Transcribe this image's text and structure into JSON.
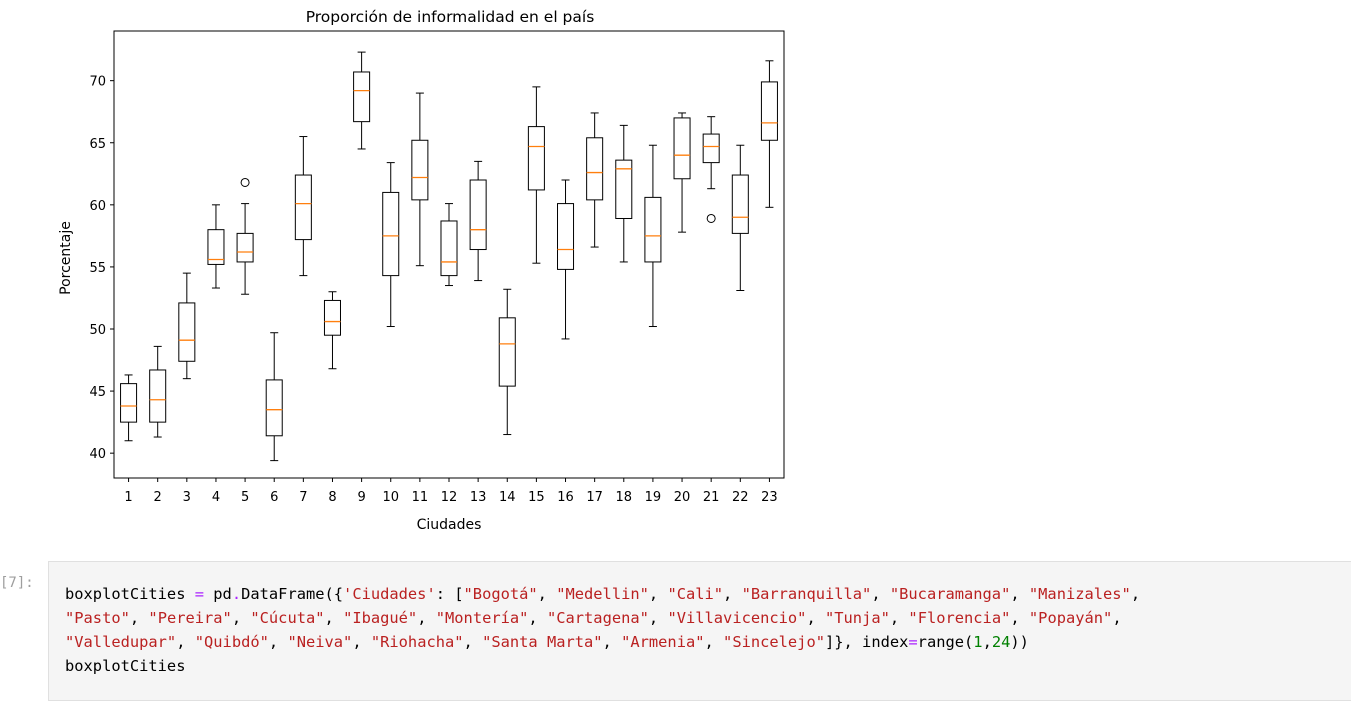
{
  "chart_data": {
    "type": "boxplot",
    "title": "Proporción de informalidad en el país",
    "xlabel": "Ciudades",
    "ylabel": "Porcentaje",
    "ylim": [
      38,
      74
    ],
    "yticks": [
      40,
      45,
      50,
      55,
      60,
      65,
      70
    ],
    "categories": [
      "1",
      "2",
      "3",
      "4",
      "5",
      "6",
      "7",
      "8",
      "9",
      "10",
      "11",
      "12",
      "13",
      "14",
      "15",
      "16",
      "17",
      "18",
      "19",
      "20",
      "21",
      "22",
      "23"
    ],
    "grid": false,
    "colors": {
      "box": "#000000",
      "median": "#ff7f0e"
    },
    "boxes": [
      {
        "category": "1",
        "whislo": 41.0,
        "q1": 42.5,
        "median": 43.8,
        "q3": 45.6,
        "whishi": 46.3,
        "fliers": []
      },
      {
        "category": "2",
        "whislo": 41.3,
        "q1": 42.5,
        "median": 44.3,
        "q3": 46.7,
        "whishi": 48.6,
        "fliers": []
      },
      {
        "category": "3",
        "whislo": 46.0,
        "q1": 47.4,
        "median": 49.1,
        "q3": 52.1,
        "whishi": 54.5,
        "fliers": []
      },
      {
        "category": "4",
        "whislo": 53.3,
        "q1": 55.2,
        "median": 55.6,
        "q3": 58.0,
        "whishi": 60.0,
        "fliers": []
      },
      {
        "category": "5",
        "whislo": 52.8,
        "q1": 55.4,
        "median": 56.2,
        "q3": 57.7,
        "whishi": 60.1,
        "fliers": [
          61.8
        ]
      },
      {
        "category": "6",
        "whislo": 39.4,
        "q1": 41.4,
        "median": 43.5,
        "q3": 45.9,
        "whishi": 49.7,
        "fliers": []
      },
      {
        "category": "7",
        "whislo": 54.3,
        "q1": 57.2,
        "median": 60.1,
        "q3": 62.4,
        "whishi": 65.5,
        "fliers": []
      },
      {
        "category": "8",
        "whislo": 46.8,
        "q1": 49.5,
        "median": 50.6,
        "q3": 52.3,
        "whishi": 53.0,
        "fliers": []
      },
      {
        "category": "9",
        "whislo": 64.5,
        "q1": 66.7,
        "median": 69.2,
        "q3": 70.7,
        "whishi": 72.3,
        "fliers": []
      },
      {
        "category": "10",
        "whislo": 50.2,
        "q1": 54.3,
        "median": 57.5,
        "q3": 61.0,
        "whishi": 63.4,
        "fliers": []
      },
      {
        "category": "11",
        "whislo": 55.1,
        "q1": 60.4,
        "median": 62.2,
        "q3": 65.2,
        "whishi": 69.0,
        "fliers": []
      },
      {
        "category": "12",
        "whislo": 53.5,
        "q1": 54.3,
        "median": 55.4,
        "q3": 58.7,
        "whishi": 60.1,
        "fliers": []
      },
      {
        "category": "13",
        "whislo": 53.9,
        "q1": 56.4,
        "median": 58.0,
        "q3": 62.0,
        "whishi": 63.5,
        "fliers": []
      },
      {
        "category": "14",
        "whislo": 41.5,
        "q1": 45.4,
        "median": 48.8,
        "q3": 50.9,
        "whishi": 53.2,
        "fliers": []
      },
      {
        "category": "15",
        "whislo": 55.3,
        "q1": 61.2,
        "median": 64.7,
        "q3": 66.3,
        "whishi": 69.5,
        "fliers": []
      },
      {
        "category": "16",
        "whislo": 49.2,
        "q1": 54.8,
        "median": 56.4,
        "q3": 60.1,
        "whishi": 62.0,
        "fliers": []
      },
      {
        "category": "17",
        "whislo": 56.6,
        "q1": 60.4,
        "median": 62.6,
        "q3": 65.4,
        "whishi": 67.4,
        "fliers": []
      },
      {
        "category": "18",
        "whislo": 55.4,
        "q1": 58.9,
        "median": 62.9,
        "q3": 63.6,
        "whishi": 66.4,
        "fliers": []
      },
      {
        "category": "19",
        "whislo": 50.2,
        "q1": 55.4,
        "median": 57.5,
        "q3": 60.6,
        "whishi": 64.8,
        "fliers": []
      },
      {
        "category": "20",
        "whislo": 57.8,
        "q1": 62.1,
        "median": 64.0,
        "q3": 67.0,
        "whishi": 67.4,
        "fliers": []
      },
      {
        "category": "21",
        "whislo": 61.3,
        "q1": 63.4,
        "median": 64.7,
        "q3": 65.7,
        "whishi": 67.1,
        "fliers": [
          58.9
        ]
      },
      {
        "category": "22",
        "whislo": 53.1,
        "q1": 57.7,
        "median": 59.0,
        "q3": 62.4,
        "whishi": 64.8,
        "fliers": []
      },
      {
        "category": "23",
        "whislo": 59.8,
        "q1": 65.2,
        "median": 66.6,
        "q3": 69.9,
        "whishi": 71.6,
        "fliers": []
      }
    ]
  },
  "cell": {
    "prompt": "[7]:",
    "lines": [
      [
        {
          "t": "boxplotCities "
        },
        {
          "t": "=",
          "c": "op"
        },
        {
          "t": " pd"
        },
        {
          "t": ".",
          "c": "op"
        },
        {
          "t": "DataFrame({"
        },
        {
          "t": "'Ciudades'",
          "c": "str"
        },
        {
          "t": ": ["
        },
        {
          "t": "\"Bogotá\"",
          "c": "str"
        },
        {
          "t": ", "
        },
        {
          "t": "\"Medellin\"",
          "c": "str"
        },
        {
          "t": ", "
        },
        {
          "t": "\"Cali\"",
          "c": "str"
        },
        {
          "t": ", "
        },
        {
          "t": "\"Barranquilla\"",
          "c": "str"
        },
        {
          "t": ", "
        },
        {
          "t": "\"Bucaramanga\"",
          "c": "str"
        },
        {
          "t": ", "
        },
        {
          "t": "\"Manizales\"",
          "c": "str"
        },
        {
          "t": ","
        }
      ],
      [
        {
          "t": "\"Pasto\"",
          "c": "str"
        },
        {
          "t": ", "
        },
        {
          "t": "\"Pereira\"",
          "c": "str"
        },
        {
          "t": ", "
        },
        {
          "t": "\"Cúcuta\"",
          "c": "str"
        },
        {
          "t": ", "
        },
        {
          "t": "\"Ibagué\"",
          "c": "str"
        },
        {
          "t": ", "
        },
        {
          "t": "\"Montería\"",
          "c": "str"
        },
        {
          "t": ", "
        },
        {
          "t": "\"Cartagena\"",
          "c": "str"
        },
        {
          "t": ", "
        },
        {
          "t": "\"Villavicencio\"",
          "c": "str"
        },
        {
          "t": ", "
        },
        {
          "t": "\"Tunja\"",
          "c": "str"
        },
        {
          "t": ", "
        },
        {
          "t": "\"Florencia\"",
          "c": "str"
        },
        {
          "t": ", "
        },
        {
          "t": "\"Popayán\"",
          "c": "str"
        },
        {
          "t": ","
        }
      ],
      [
        {
          "t": "\"Valledupar\"",
          "c": "str"
        },
        {
          "t": ", "
        },
        {
          "t": "\"Quibdó\"",
          "c": "str"
        },
        {
          "t": ", "
        },
        {
          "t": "\"Neiva\"",
          "c": "str"
        },
        {
          "t": ", "
        },
        {
          "t": "\"Riohacha\"",
          "c": "str"
        },
        {
          "t": ", "
        },
        {
          "t": "\"Santa Marta\"",
          "c": "str"
        },
        {
          "t": ", "
        },
        {
          "t": "\"Armenia\"",
          "c": "str"
        },
        {
          "t": ", "
        },
        {
          "t": "\"Sincelejo\"",
          "c": "str"
        },
        {
          "t": "]}, index"
        },
        {
          "t": "=",
          "c": "op"
        },
        {
          "t": "range("
        },
        {
          "t": "1",
          "c": "num"
        },
        {
          "t": ","
        },
        {
          "t": "24",
          "c": "num"
        },
        {
          "t": "))"
        }
      ],
      [
        {
          "t": "boxplotCities"
        }
      ]
    ]
  }
}
